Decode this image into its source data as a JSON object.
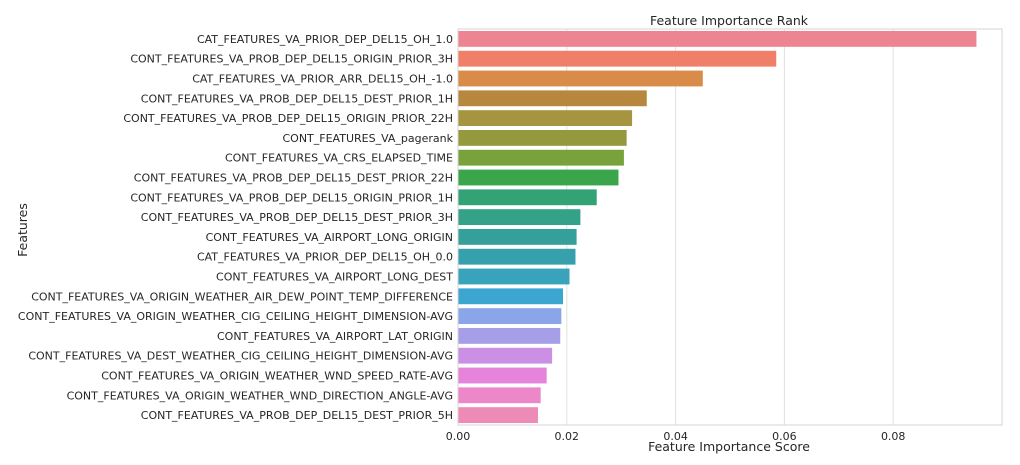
{
  "chart_data": {
    "type": "bar",
    "orientation": "horizontal",
    "title": "Feature Importance Rank",
    "xlabel": "Feature Importance Score",
    "ylabel": "Features",
    "xlim": [
      0,
      0.1
    ],
    "xticks": [
      0.0,
      0.02,
      0.04,
      0.06,
      0.08
    ],
    "xtick_labels": [
      "0.00",
      "0.02",
      "0.04",
      "0.06",
      "0.08"
    ],
    "grid": "vertical",
    "categories": [
      "CAT_FEATURES_VA_PRIOR_DEP_DEL15_OH_1.0",
      "CONT_FEATURES_VA_PROB_DEP_DEL15_ORIGIN_PRIOR_3H",
      "CAT_FEATURES_VA_PRIOR_ARR_DEL15_OH_-1.0",
      "CONT_FEATURES_VA_PROB_DEP_DEL15_DEST_PRIOR_1H",
      "CONT_FEATURES_VA_PROB_DEP_DEL15_ORIGIN_PRIOR_22H",
      "CONT_FEATURES_VA_pagerank",
      "CONT_FEATURES_VA_CRS_ELAPSED_TIME",
      "CONT_FEATURES_VA_PROB_DEP_DEL15_DEST_PRIOR_22H",
      "CONT_FEATURES_VA_PROB_DEP_DEL15_ORIGIN_PRIOR_1H",
      "CONT_FEATURES_VA_PROB_DEP_DEL15_DEST_PRIOR_3H",
      "CONT_FEATURES_VA_AIRPORT_LONG_ORIGIN",
      "CAT_FEATURES_VA_PRIOR_DEP_DEL15_OH_0.0",
      "CONT_FEATURES_VA_AIRPORT_LONG_DEST",
      "CONT_FEATURES_VA_ORIGIN_WEATHER_AIR_DEW_POINT_TEMP_DIFFERENCE",
      "CONT_FEATURES_VA_ORIGIN_WEATHER_CIG_CEILING_HEIGHT_DIMENSION-AVG",
      "CONT_FEATURES_VA_AIRPORT_LAT_ORIGIN",
      "CONT_FEATURES_VA_DEST_WEATHER_CIG_CEILING_HEIGHT_DIMENSION-AVG",
      "CONT_FEATURES_VA_ORIGIN_WEATHER_WND_SPEED_RATE-AVG",
      "CONT_FEATURES_VA_ORIGIN_WEATHER_WND_DIRECTION_ANGLE-AVG",
      "CONT_FEATURES_VA_PROB_DEP_DEL15_DEST_PRIOR_5H"
    ],
    "values": [
      0.0953,
      0.0585,
      0.045,
      0.0347,
      0.032,
      0.031,
      0.0305,
      0.0295,
      0.0255,
      0.0225,
      0.0218,
      0.0216,
      0.0205,
      0.0193,
      0.019,
      0.0188,
      0.0173,
      0.0163,
      0.0152,
      0.0147
    ],
    "colors": [
      "#ed8491",
      "#f07f6a",
      "#d98b4a",
      "#b8873e",
      "#a59540",
      "#93993c",
      "#7aa23c",
      "#3aa54b",
      "#33a274",
      "#34a189",
      "#35a09b",
      "#36a1ad",
      "#38a3bb",
      "#3ca6d0",
      "#8ba6e8",
      "#a79ee8",
      "#cc8fe6",
      "#e684dc",
      "#ec88c8",
      "#ed8bb6"
    ]
  }
}
